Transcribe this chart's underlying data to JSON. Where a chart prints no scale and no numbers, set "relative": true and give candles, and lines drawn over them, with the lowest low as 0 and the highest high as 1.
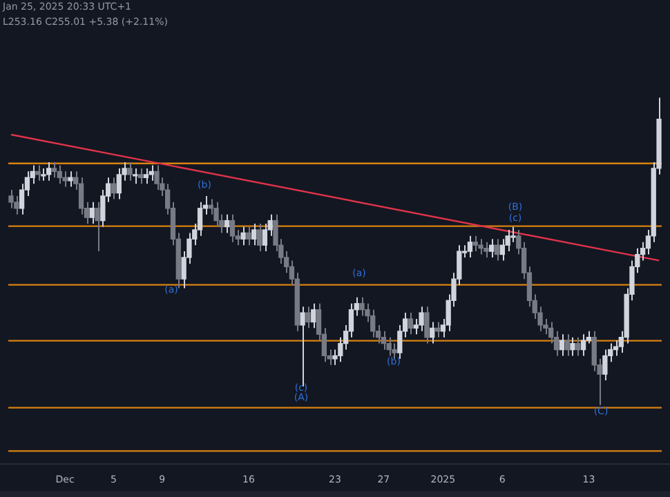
{
  "chart_data": {
    "type": "candlestick",
    "relative": true,
    "annotations": [
      "Jan 25, 2025 20:33 UTC+1",
      "L253.16 C255.01 +5.38 (+2.11%)",
      "(a)",
      "(b)",
      "(c)",
      "(A)",
      "(a)",
      "(b)",
      "(B)",
      "(c)",
      "(C)"
    ],
    "categories": [
      null,
      null,
      null,
      null,
      null,
      null,
      null,
      null,
      null,
      null,
      "Dec",
      null,
      null,
      null,
      null,
      null,
      null,
      null,
      null,
      "5",
      null,
      null,
      null,
      null,
      null,
      null,
      null,
      null,
      "9",
      null,
      null,
      null,
      null,
      null,
      null,
      null,
      null,
      null,
      null,
      null,
      null,
      null,
      null,
      null,
      "16",
      null,
      null,
      null,
      null,
      null,
      null,
      null,
      null,
      null,
      null,
      null,
      null,
      null,
      null,
      null,
      "23",
      null,
      null,
      null,
      null,
      null,
      null,
      null,
      null,
      "27",
      null,
      null,
      null,
      null,
      null,
      null,
      null,
      null,
      null,
      null,
      "2025",
      null,
      null,
      null,
      null,
      null,
      null,
      null,
      null,
      null,
      null,
      "6",
      null,
      null,
      null,
      null,
      null,
      null,
      null,
      null,
      null,
      null,
      null,
      null,
      null,
      null,
      null,
      "13",
      null,
      null,
      null,
      null,
      null,
      null,
      null,
      null,
      null,
      null,
      null,
      null,
      null
    ],
    "ohlc": [
      [
        0.68,
        0.7,
        0.64,
        0.66
      ],
      [
        0.66,
        0.68,
        0.62,
        0.64
      ],
      [
        0.64,
        0.72,
        0.62,
        0.7
      ],
      [
        0.7,
        0.76,
        0.68,
        0.74
      ],
      [
        0.74,
        0.78,
        0.72,
        0.76
      ],
      [
        0.76,
        0.78,
        0.73,
        0.75
      ],
      [
        0.75,
        0.77,
        0.73,
        0.75
      ],
      [
        0.75,
        0.79,
        0.73,
        0.77
      ],
      [
        0.77,
        0.79,
        0.74,
        0.76
      ],
      [
        0.76,
        0.78,
        0.72,
        0.74
      ],
      [
        0.74,
        0.76,
        0.71,
        0.73
      ],
      [
        0.73,
        0.76,
        0.71,
        0.74
      ],
      [
        0.74,
        0.76,
        0.7,
        0.72
      ],
      [
        0.72,
        0.74,
        0.62,
        0.64
      ],
      [
        0.64,
        0.66,
        0.59,
        0.61
      ],
      [
        0.61,
        0.66,
        0.59,
        0.64
      ],
      [
        0.64,
        0.66,
        0.5,
        0.6
      ],
      [
        0.6,
        0.7,
        0.58,
        0.68
      ],
      [
        0.68,
        0.74,
        0.66,
        0.72
      ],
      [
        0.72,
        0.74,
        0.67,
        0.69
      ],
      [
        0.69,
        0.77,
        0.67,
        0.75
      ],
      [
        0.75,
        0.79,
        0.73,
        0.77
      ],
      [
        0.77,
        0.79,
        0.73,
        0.75
      ],
      [
        0.75,
        0.77,
        0.72,
        0.75
      ],
      [
        0.75,
        0.77,
        0.72,
        0.74
      ],
      [
        0.74,
        0.77,
        0.72,
        0.75
      ],
      [
        0.75,
        0.78,
        0.73,
        0.76
      ],
      [
        0.76,
        0.78,
        0.7,
        0.72
      ],
      [
        0.72,
        0.74,
        0.68,
        0.7
      ],
      [
        0.7,
        0.72,
        0.62,
        0.64
      ],
      [
        0.64,
        0.66,
        0.52,
        0.54
      ],
      [
        0.54,
        0.56,
        0.38,
        0.41
      ],
      [
        0.41,
        0.5,
        0.38,
        0.48
      ],
      [
        0.48,
        0.56,
        0.46,
        0.54
      ],
      [
        0.54,
        0.59,
        0.52,
        0.57
      ],
      [
        0.57,
        0.66,
        0.55,
        0.64
      ],
      [
        0.64,
        0.68,
        0.62,
        0.65
      ],
      [
        0.65,
        0.67,
        0.62,
        0.64
      ],
      [
        0.64,
        0.66,
        0.58,
        0.6
      ],
      [
        0.6,
        0.62,
        0.56,
        0.58
      ],
      [
        0.58,
        0.62,
        0.56,
        0.6
      ],
      [
        0.6,
        0.62,
        0.53,
        0.55
      ],
      [
        0.55,
        0.57,
        0.52,
        0.54
      ],
      [
        0.54,
        0.58,
        0.52,
        0.56
      ],
      [
        0.56,
        0.58,
        0.52,
        0.54
      ],
      [
        0.54,
        0.59,
        0.52,
        0.57
      ],
      [
        0.57,
        0.59,
        0.5,
        0.52
      ],
      [
        0.52,
        0.59,
        0.5,
        0.57
      ],
      [
        0.57,
        0.62,
        0.55,
        0.6
      ],
      [
        0.6,
        0.62,
        0.5,
        0.52
      ],
      [
        0.52,
        0.54,
        0.46,
        0.48
      ],
      [
        0.48,
        0.5,
        0.43,
        0.45
      ],
      [
        0.45,
        0.47,
        0.39,
        0.41
      ],
      [
        0.41,
        0.43,
        0.24,
        0.26
      ],
      [
        0.26,
        0.32,
        0.06,
        0.3
      ],
      [
        0.3,
        0.32,
        0.25,
        0.27
      ],
      [
        0.27,
        0.33,
        0.25,
        0.31
      ],
      [
        0.31,
        0.33,
        0.21,
        0.23
      ],
      [
        0.23,
        0.25,
        0.14,
        0.16
      ],
      [
        0.16,
        0.18,
        0.13,
        0.15
      ],
      [
        0.15,
        0.18,
        0.13,
        0.16
      ],
      [
        0.16,
        0.22,
        0.14,
        0.2
      ],
      [
        0.2,
        0.26,
        0.18,
        0.24
      ],
      [
        0.24,
        0.33,
        0.22,
        0.31
      ],
      [
        0.31,
        0.35,
        0.29,
        0.33
      ],
      [
        0.33,
        0.35,
        0.29,
        0.31
      ],
      [
        0.31,
        0.33,
        0.27,
        0.29
      ],
      [
        0.29,
        0.31,
        0.22,
        0.24
      ],
      [
        0.24,
        0.26,
        0.2,
        0.22
      ],
      [
        0.22,
        0.24,
        0.18,
        0.2
      ],
      [
        0.2,
        0.22,
        0.16,
        0.18
      ],
      [
        0.18,
        0.2,
        0.15,
        0.17
      ],
      [
        0.17,
        0.26,
        0.15,
        0.24
      ],
      [
        0.24,
        0.3,
        0.22,
        0.28
      ],
      [
        0.28,
        0.3,
        0.23,
        0.25
      ],
      [
        0.25,
        0.28,
        0.23,
        0.26
      ],
      [
        0.26,
        0.32,
        0.24,
        0.3
      ],
      [
        0.3,
        0.32,
        0.2,
        0.22
      ],
      [
        0.22,
        0.27,
        0.2,
        0.25
      ],
      [
        0.25,
        0.27,
        0.22,
        0.24
      ],
      [
        0.24,
        0.28,
        0.22,
        0.26
      ],
      [
        0.26,
        0.36,
        0.24,
        0.34
      ],
      [
        0.34,
        0.43,
        0.32,
        0.41
      ],
      [
        0.41,
        0.52,
        0.39,
        0.5
      ],
      [
        0.5,
        0.52,
        0.48,
        0.5
      ],
      [
        0.5,
        0.55,
        0.48,
        0.53
      ],
      [
        0.53,
        0.55,
        0.5,
        0.52
      ],
      [
        0.52,
        0.54,
        0.49,
        0.51
      ],
      [
        0.51,
        0.53,
        0.48,
        0.5
      ],
      [
        0.5,
        0.54,
        0.48,
        0.52
      ],
      [
        0.52,
        0.54,
        0.47,
        0.49
      ],
      [
        0.49,
        0.54,
        0.47,
        0.52
      ],
      [
        0.52,
        0.57,
        0.5,
        0.55
      ],
      [
        0.55,
        0.58,
        0.53,
        0.55
      ],
      [
        0.55,
        0.57,
        0.49,
        0.51
      ],
      [
        0.51,
        0.53,
        0.41,
        0.43
      ],
      [
        0.43,
        0.45,
        0.32,
        0.34
      ],
      [
        0.34,
        0.36,
        0.28,
        0.3
      ],
      [
        0.3,
        0.32,
        0.24,
        0.26
      ],
      [
        0.26,
        0.28,
        0.23,
        0.25
      ],
      [
        0.25,
        0.27,
        0.2,
        0.22
      ],
      [
        0.22,
        0.24,
        0.16,
        0.18
      ],
      [
        0.18,
        0.23,
        0.16,
        0.21
      ],
      [
        0.21,
        0.23,
        0.16,
        0.18
      ],
      [
        0.18,
        0.22,
        0.16,
        0.2
      ],
      [
        0.2,
        0.22,
        0.16,
        0.18
      ],
      [
        0.18,
        0.23,
        0.16,
        0.21
      ],
      [
        0.21,
        0.24,
        0.2,
        0.22
      ],
      [
        0.22,
        0.24,
        0.11,
        0.13
      ],
      [
        0.13,
        0.15,
        0,
        0.1
      ],
      [
        0.1,
        0.18,
        0.08,
        0.16
      ],
      [
        0.16,
        0.2,
        0.14,
        0.18
      ],
      [
        0.18,
        0.21,
        0.16,
        0.19
      ],
      [
        0.19,
        0.24,
        0.17,
        0.22
      ],
      [
        0.22,
        0.38,
        0.2,
        0.36
      ],
      [
        0.36,
        0.47,
        0.34,
        0.45
      ],
      [
        0.45,
        0.51,
        0.43,
        0.49
      ],
      [
        0.49,
        0.53,
        0.47,
        0.51
      ],
      [
        0.51,
        0.57,
        0.49,
        0.55
      ],
      [
        0.55,
        0.79,
        0.53,
        0.77
      ],
      [
        0.77,
        1,
        0.75,
        0.93
      ]
    ],
    "series": [
      {
        "type": "line",
        "color": "#e0334a",
        "values": [
          0.88,
          null,
          null,
          null,
          null,
          null,
          null,
          null,
          null,
          null,
          null,
          null,
          null,
          null,
          null,
          null,
          null,
          null,
          null,
          null,
          null,
          null,
          null,
          null,
          null,
          null,
          null,
          null,
          null,
          null,
          null,
          null,
          null,
          null,
          null,
          null,
          null,
          null,
          null,
          null,
          null,
          null,
          null,
          null,
          null,
          null,
          null,
          null,
          null,
          null,
          null,
          null,
          null,
          null,
          null,
          null,
          null,
          null,
          null,
          null,
          null,
          null,
          null,
          null,
          null,
          null,
          null,
          null,
          null,
          null,
          null,
          null,
          null,
          null,
          null,
          null,
          null,
          null,
          null,
          null,
          null,
          null,
          null,
          null,
          null,
          null,
          null,
          null,
          null,
          null,
          null,
          null,
          null,
          null,
          null,
          null,
          null,
          null,
          null,
          null,
          null,
          null,
          null,
          null,
          null,
          null,
          null,
          null,
          null,
          null,
          null,
          null,
          null,
          null,
          null,
          null,
          null,
          null,
          null,
          null,
          0.47
        ]
      }
    ],
    "ref_lines": [
      {
        "axis": "y",
        "value": 0.786,
        "color": "#d9820f"
      },
      {
        "axis": "y",
        "value": 0.582,
        "color": "#d9820f"
      },
      {
        "axis": "y",
        "value": 0.391,
        "color": "#d9820f"
      },
      {
        "axis": "y",
        "value": 0.209,
        "color": "#d9820f"
      },
      {
        "axis": "y",
        "value": -0.009,
        "color": "#d9820f"
      },
      {
        "axis": "y",
        "value": -0.15,
        "color": "#d9820f"
      }
    ]
  }
}
